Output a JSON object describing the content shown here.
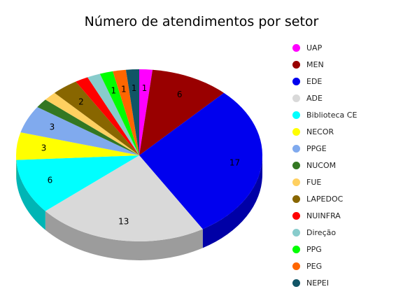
{
  "chart_data": {
    "type": "pie",
    "title": "Número de atendimentos por setor",
    "legend_position": "right",
    "slices": [
      {
        "label": "UAP",
        "value": 1,
        "color": "#ff00ff",
        "side": "#b000b0"
      },
      {
        "label": "MEN",
        "value": 6,
        "color": "#990000",
        "side": "#660000"
      },
      {
        "label": "EDE",
        "value": 17,
        "color": "#0000ee",
        "side": "#0000a6"
      },
      {
        "label": "ADE",
        "value": 13,
        "color": "#d9d9d9",
        "side": "#9c9c9c"
      },
      {
        "label": "Biblioteca CE",
        "value": 6,
        "color": "#00ffff",
        "side": "#00b5b5"
      },
      {
        "label": "NECOR",
        "value": 3,
        "color": "#ffff00",
        "side": "#b5b500"
      },
      {
        "label": "PPGE",
        "value": 3,
        "color": "#80aaee",
        "side": "#5a78a8"
      },
      {
        "label": "NUCOM",
        "value": 1,
        "color": "#337722",
        "side": "#224d16"
      },
      {
        "label": "FUE",
        "value": 1,
        "color": "#ffd060",
        "side": "#b59444"
      },
      {
        "label": "LAPEDOC",
        "value": 2,
        "color": "#886600",
        "side": "#5e4600"
      },
      {
        "label": "NUINFRA",
        "value": 1,
        "color": "#ff0000",
        "side": "#b00000"
      },
      {
        "label": "Direção",
        "value": 1,
        "color": "#88cccc",
        "side": "#5e9090"
      },
      {
        "label": "PPG",
        "value": 1,
        "color": "#00ff00",
        "side": "#00b000"
      },
      {
        "label": "PEG",
        "value": 1,
        "color": "#ff6600",
        "side": "#b04600"
      },
      {
        "label": "NEPEI",
        "value": 1,
        "color": "#115566",
        "side": "#0b3a46"
      }
    ]
  }
}
